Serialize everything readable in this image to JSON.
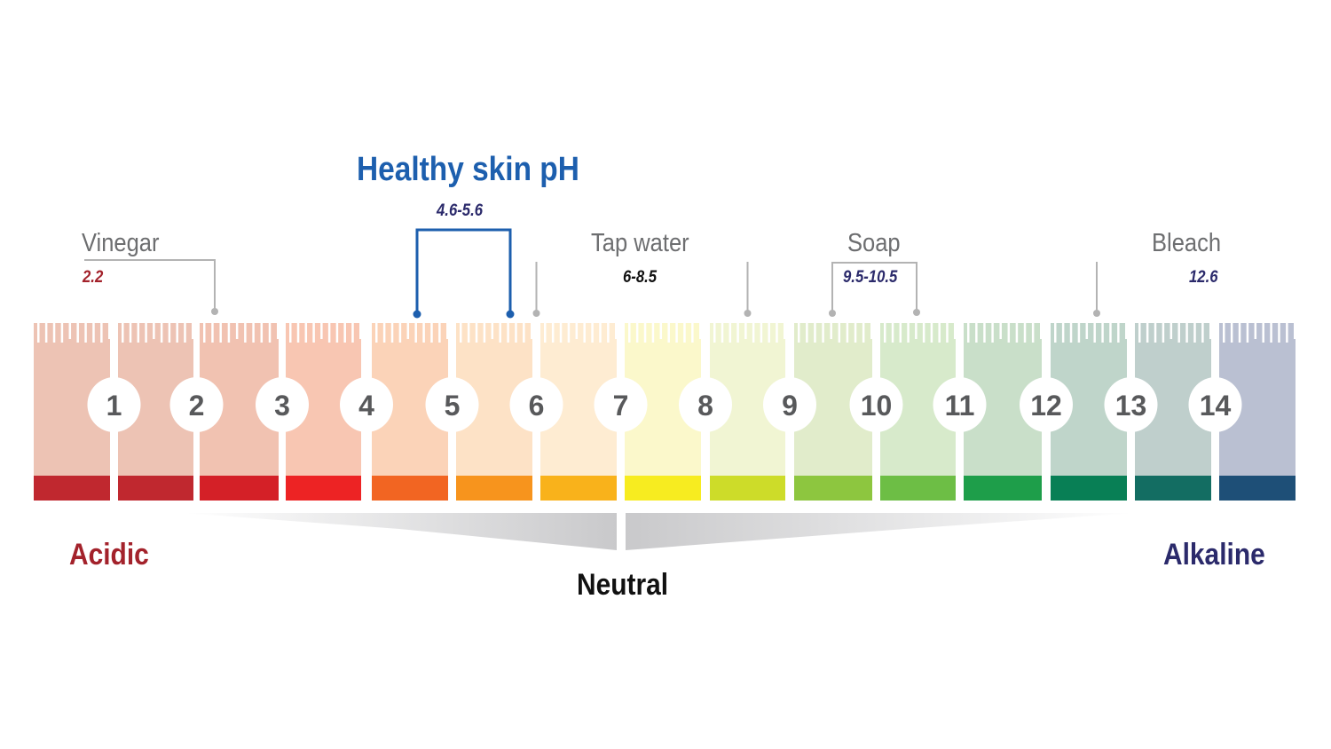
{
  "title": "Healthy skin pH",
  "healthy_range": {
    "label": "4.6-5.6",
    "from": 4.6,
    "to": 5.6,
    "color": "#1d5fae"
  },
  "markers": [
    {
      "name": "Vinegar",
      "value_label": "2.2",
      "value_color": "#a3222b"
    },
    {
      "name": "Tap water",
      "value_label": "6-8.5",
      "value_color": "#111111"
    },
    {
      "name": "Soap",
      "value_label": "9.5-10.5",
      "value_color": "#2b2a6b"
    },
    {
      "name": "Bleach",
      "value_label": "12.6",
      "value_color": "#2b2a6b"
    }
  ],
  "scale": {
    "numbers": [
      "1",
      "2",
      "3",
      "4",
      "5",
      "6",
      "7",
      "8",
      "9",
      "10",
      "11",
      "12",
      "13",
      "14"
    ],
    "dark_colors": [
      "#c0282f",
      "#c0282f",
      "#d42027",
      "#ed2324",
      "#f26522",
      "#f7941d",
      "#f9b21b",
      "#f7ec20",
      "#cddc29",
      "#8dc63f",
      "#6dbe45",
      "#1e9e4a",
      "#087f55",
      "#136d62",
      "#1e4f77"
    ],
    "light_colors": [
      "#edc3b4",
      "#edc3b4",
      "#f1c2b1",
      "#f8c6b2",
      "#fbd3b8",
      "#fde2c6",
      "#feecd2",
      "#fbf8cb",
      "#f1f5d3",
      "#e1eccb",
      "#d7eacb",
      "#c9dfc9",
      "#bfd5ca",
      "#bfcfcc",
      "#bac0d2"
    ]
  },
  "acidic_label": "Acidic",
  "alkaline_label": "Alkaline",
  "neutral_label": "Neutral"
}
